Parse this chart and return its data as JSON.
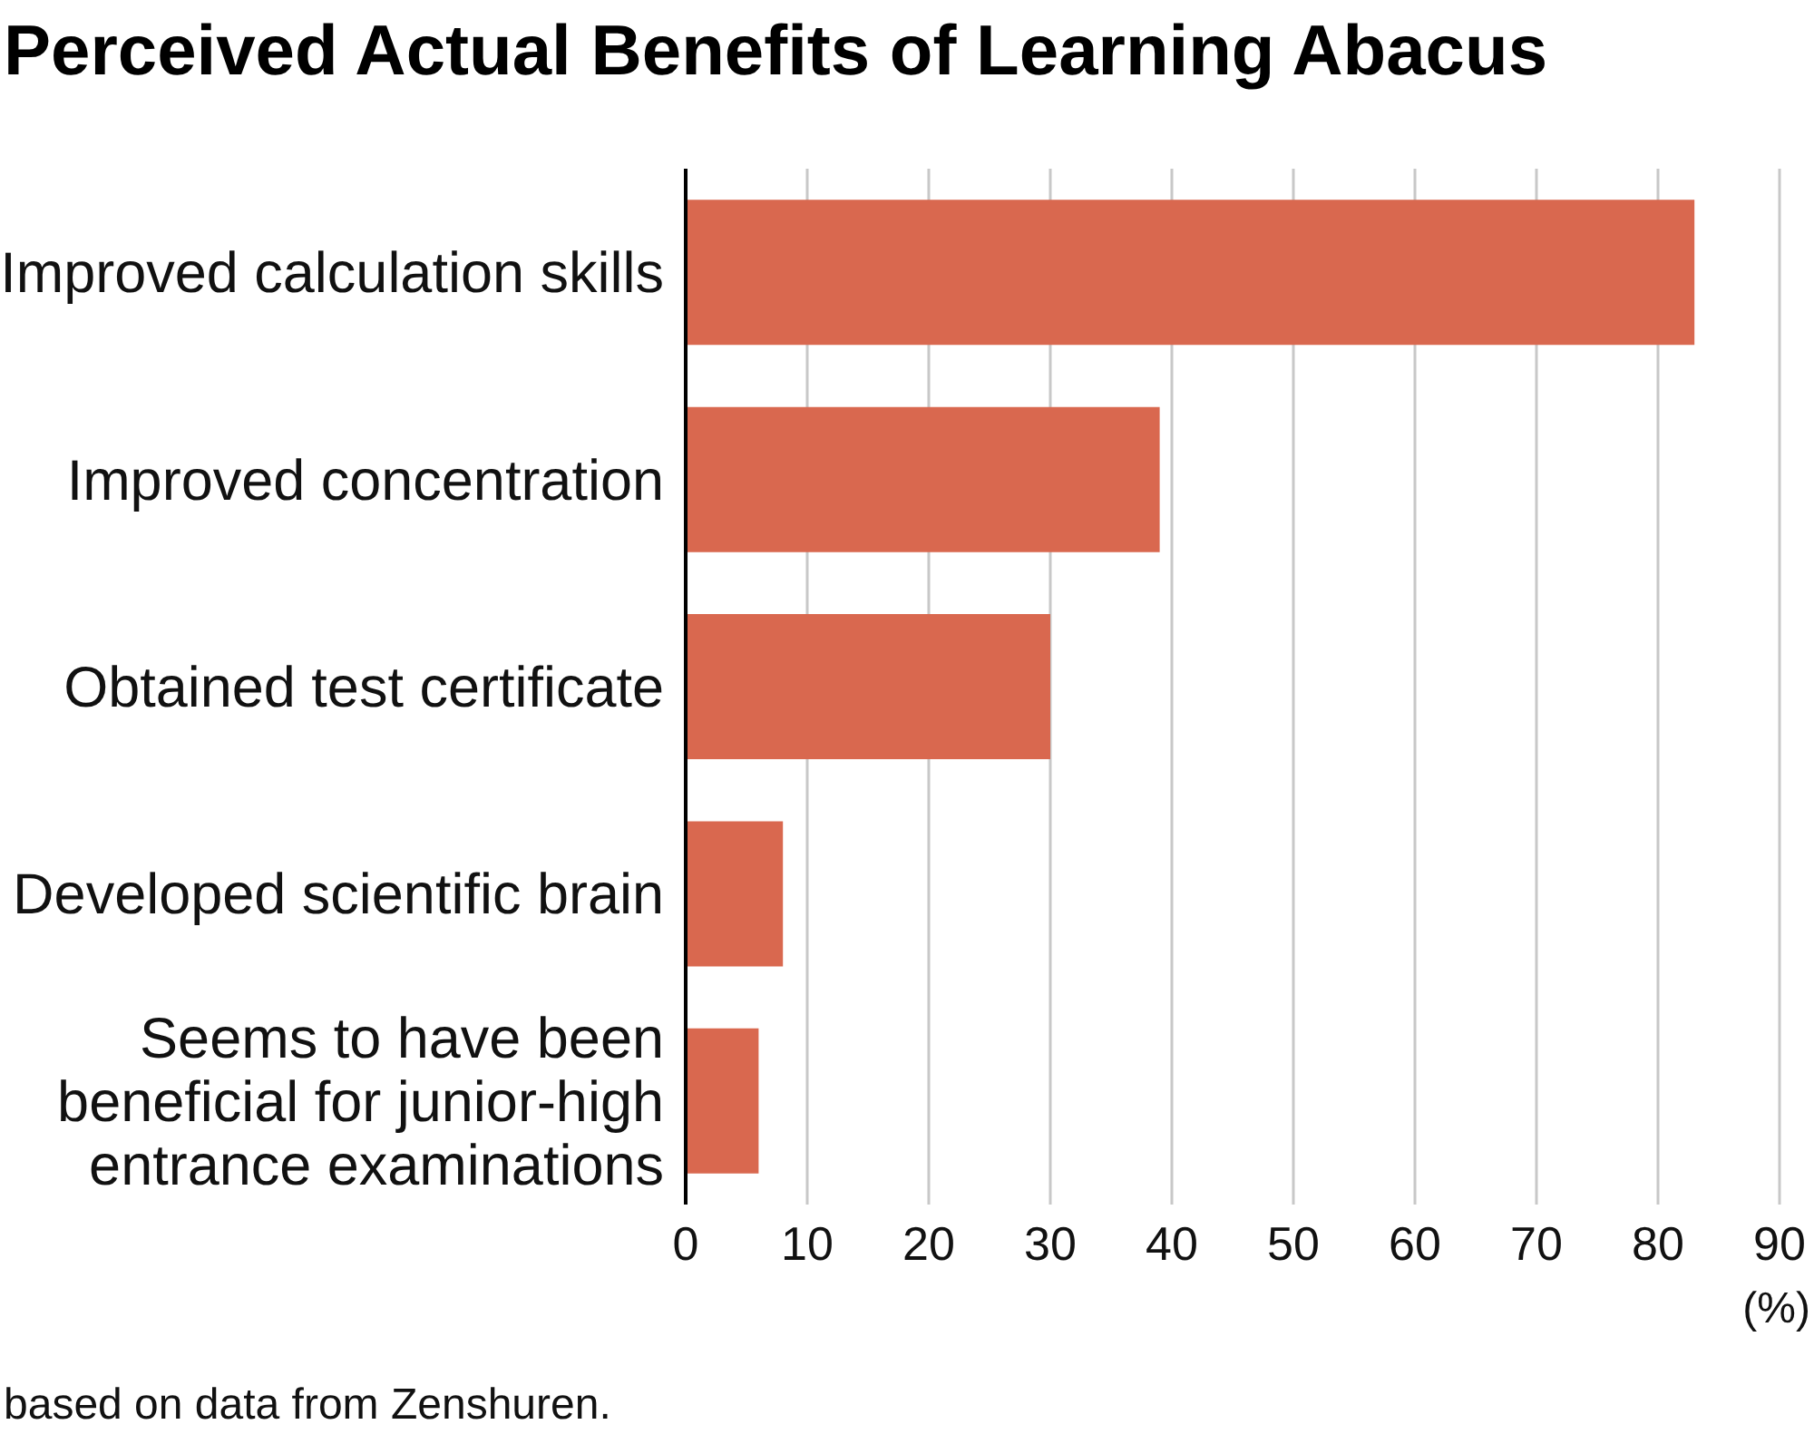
{
  "chart_data": {
    "type": "bar",
    "orientation": "horizontal",
    "title": "Perceived Actual Benefits of Learning Abacus",
    "categories": [
      "Improved calculation skills",
      "Improved concentration",
      "Obtained test certificate",
      "Developed scientific brain",
      "Seems to have been beneficial for junior-high entrance examinations"
    ],
    "values": [
      83,
      39,
      30,
      8,
      6
    ],
    "color": "#d9684f",
    "xlim": [
      0,
      90
    ],
    "xticks": [
      0,
      10,
      20,
      30,
      40,
      50,
      60,
      70,
      80,
      90
    ],
    "xlabel": "(%)",
    "grid": "x",
    "annotations": [
      "based on data from Zenshuren."
    ]
  }
}
